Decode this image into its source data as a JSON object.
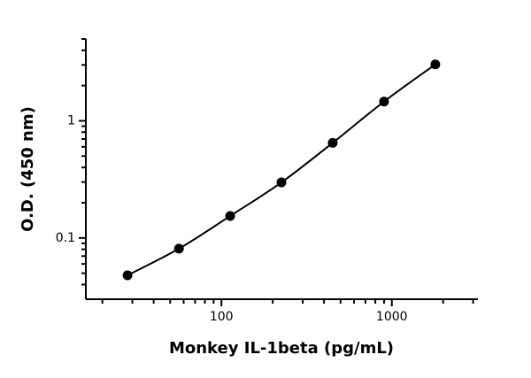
{
  "chart_data": {
    "type": "scatter",
    "x_label": "Monkey IL-1beta (pg/mL)",
    "y_label": "O.D. (450 nm)",
    "xlog": true,
    "ylog": true,
    "xlim": [
      16,
      3200
    ],
    "ylim": [
      0.03,
      5
    ],
    "xticks": [
      100,
      1000
    ],
    "xminorticks": [
      20,
      30,
      40,
      50,
      60,
      70,
      80,
      90,
      200,
      300,
      400,
      500,
      600,
      700,
      800,
      900,
      2000,
      3000
    ],
    "yticks": [
      0.1,
      1
    ],
    "yminorticks": [
      0.04,
      0.05,
      0.06,
      0.07,
      0.08,
      0.09,
      0.2,
      0.3,
      0.4,
      0.5,
      0.6,
      0.7,
      0.8,
      0.9,
      2,
      3,
      4,
      5
    ],
    "color": "#000000",
    "fit_line": true,
    "series": [
      {
        "x": [
          28.1,
          56.3,
          112.5,
          225,
          450,
          900,
          1800
        ],
        "values": [
          0.048,
          0.081,
          0.154,
          0.298,
          0.649,
          1.46,
          3.03
        ]
      }
    ]
  }
}
